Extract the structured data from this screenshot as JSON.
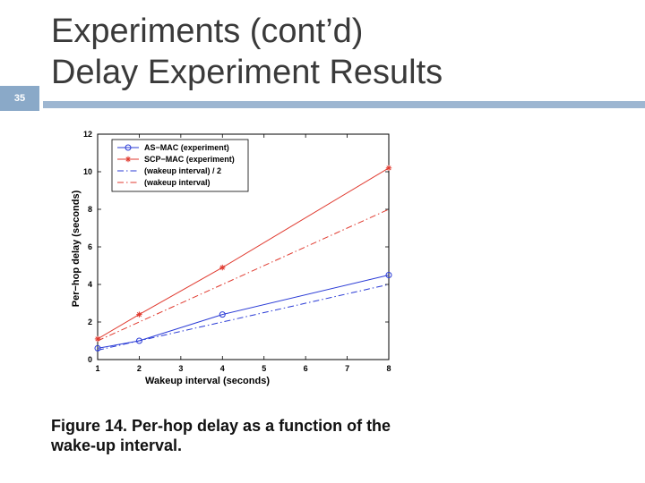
{
  "slide": {
    "title_line1": "Experiments (cont’d)",
    "title_line2": "Delay Experiment Results",
    "slide_number": "35",
    "caption_line1": "Figure 14. Per-hop delay as a function of the",
    "caption_line2": "wake-up interval."
  },
  "colors": {
    "accent_bar": "#9db6d1",
    "slide_number_box": "#8aa9c8",
    "blue": "#2a3bd6",
    "red": "#e03a2f"
  },
  "chart_data": {
    "type": "line",
    "xlabel": "Wakeup interval (seconds)",
    "ylabel": "Per−hop delay (seconds)",
    "xlim": [
      1,
      8
    ],
    "ylim": [
      0,
      12
    ],
    "xticks": [
      1,
      2,
      3,
      4,
      5,
      6,
      7,
      8
    ],
    "yticks": [
      0,
      2,
      4,
      6,
      8,
      10,
      12
    ],
    "grid": false,
    "legend_position": "top-left",
    "series": [
      {
        "name": "AS−MAC (experiment)",
        "x": [
          1,
          2,
          4,
          8
        ],
        "y": [
          0.6,
          1.0,
          2.4,
          4.5
        ],
        "color": "#2a3bd6",
        "style": "solid",
        "marker": "circle"
      },
      {
        "name": "SCP−MAC (experiment)",
        "x": [
          1,
          2,
          4,
          8
        ],
        "y": [
          1.1,
          2.4,
          4.9,
          10.2
        ],
        "color": "#e03a2f",
        "style": "solid",
        "marker": "star"
      },
      {
        "name": "(wakeup interval) / 2",
        "x": [
          1,
          2,
          4,
          8
        ],
        "y": [
          0.5,
          1.0,
          2.0,
          4.0
        ],
        "color": "#2a3bd6",
        "style": "dashdot",
        "marker": "none"
      },
      {
        "name": "(wakeup interval)",
        "x": [
          1,
          2,
          4,
          8
        ],
        "y": [
          1.0,
          2.0,
          4.0,
          8.0
        ],
        "color": "#e03a2f",
        "style": "dashdot",
        "marker": "none"
      }
    ]
  }
}
